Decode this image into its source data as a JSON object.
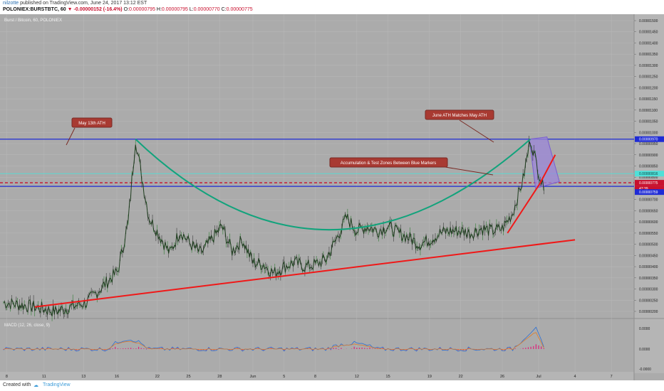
{
  "header": {
    "author": "nilzotte",
    "published": "published on TradingView.com, June 24, 2017 13:12 EST",
    "symbol": "POLONIEX:BURSTBTC, 60",
    "change": "-0.00000152 (-16.4%)",
    "ohlc": {
      "O": "0.00000795",
      "H": "0.00000795",
      "L": "0.00000770",
      "C": "0.00000775"
    },
    "last": "0.00000775"
  },
  "pane_title": "Burst / Bitcoin, 60, POLONIEX",
  "macd_title": "MACD (12, 26, close, 9)",
  "footer": {
    "created_with": "Created with",
    "brand": "TradingView"
  },
  "colors": {
    "background": "#ababab",
    "blue_line": "#1f2bd6",
    "cyan_line": "#4fe0d8",
    "red_trend": "#f01818",
    "cup_curve": "#12a37c",
    "annotation_box": "#a83a32",
    "price_box": "#9b86d8"
  },
  "annotations": [
    {
      "id": "may",
      "text": "May 13th ATH"
    },
    {
      "id": "june",
      "text": "June ATH Matches May ATH"
    },
    {
      "id": "accum",
      "text": "Accumulation & Test Zones Between Blue Markers"
    }
  ],
  "chart_data": {
    "type": "line",
    "title": "Burst / Bitcoin, 60, POLONIEX",
    "ylim": [
      1.8e-06,
      1.51e-05
    ],
    "y_ticks": [
      "0.00001500",
      "0.00001450",
      "0.00001400",
      "0.00001350",
      "0.00001300",
      "0.00001250",
      "0.00001200",
      "0.00001150",
      "0.00001100",
      "0.00001050",
      "0.00001000",
      "0.00000950",
      "0.00000900",
      "0.00000850",
      "0.00000800",
      "0.00000750",
      "0.00000700",
      "0.00000650",
      "0.00000600",
      "0.00000550",
      "0.00000500",
      "0.00000450",
      "0.00000400",
      "0.00000350",
      "0.00000300",
      "0.00000250",
      "0.00000200"
    ],
    "x_ticks": [
      "8",
      "11",
      "13",
      "16",
      "22",
      "25",
      "28",
      "Jun",
      "5",
      "8",
      "12",
      "15",
      "19",
      "22",
      "26",
      "Jul",
      "4",
      "7"
    ],
    "price_labels": [
      {
        "value": "0.00000970",
        "style": "blue"
      },
      {
        "value": "0.00000816",
        "style": "cyan"
      },
      {
        "value": "0.00000775",
        "style": "red"
      },
      {
        "value": "47:39",
        "style": "red"
      },
      {
        "value": "0.00000759",
        "style": "blue"
      }
    ],
    "horizontal_levels": [
      {
        "name": "blue-upper",
        "value": 9.7e-06
      },
      {
        "name": "cyan",
        "value": 8.16e-06
      },
      {
        "name": "red-dashed",
        "value": 7.75e-06
      },
      {
        "name": "blue-lower",
        "value": 7.59e-06
      }
    ],
    "price_series": [
      [
        0,
        2.4e-06
      ],
      [
        3,
        2.2e-06
      ],
      [
        5,
        2e-06
      ],
      [
        8,
        2.4e-06
      ],
      [
        11,
        3.8e-06
      ],
      [
        12,
        6e-06
      ],
      [
        12.7,
        9.7e-06
      ],
      [
        13.3,
        8e-06
      ],
      [
        14,
        6.2e-06
      ],
      [
        15,
        5.4e-06
      ],
      [
        16,
        4.6e-06
      ],
      [
        17,
        5.6e-06
      ],
      [
        18,
        5e-06
      ],
      [
        19,
        4.6e-06
      ],
      [
        20,
        5.2e-06
      ],
      [
        21,
        5.8e-06
      ],
      [
        22,
        4.7e-06
      ],
      [
        23,
        5.2e-06
      ],
      [
        24,
        4.2e-06
      ],
      [
        25,
        4.1e-06
      ],
      [
        26,
        3.7e-06
      ],
      [
        27,
        4e-06
      ],
      [
        28,
        4.2e-06
      ],
      [
        29,
        4e-06
      ],
      [
        30,
        4.1e-06
      ],
      [
        31,
        4.3e-06
      ],
      [
        32,
        5.2e-06
      ],
      [
        33,
        6.2e-06
      ],
      [
        34,
        5.6e-06
      ],
      [
        35,
        5.8e-06
      ],
      [
        36,
        5.6e-06
      ],
      [
        37,
        5.8e-06
      ],
      [
        38,
        5.5e-06
      ],
      [
        39,
        5.3e-06
      ],
      [
        40,
        5e-06
      ],
      [
        41,
        5.2e-06
      ],
      [
        42,
        5.5e-06
      ],
      [
        43,
        5.6e-06
      ],
      [
        44,
        5.6e-06
      ],
      [
        45,
        5.5e-06
      ],
      [
        46,
        5.7e-06
      ],
      [
        47,
        5.6e-06
      ],
      [
        48,
        5.7e-06
      ],
      [
        49,
        6.4e-06
      ],
      [
        50,
        7.9e-06
      ],
      [
        50.7,
        9.7e-06
      ],
      [
        51.3,
        8.6e-06
      ],
      [
        52,
        7.4e-06
      ]
    ],
    "macd": {
      "ylim": [
        -1.2e-06,
        1.2e-06
      ],
      "y_ticks": [
        "0.0000",
        "0.0000",
        "-0.0000"
      ]
    }
  }
}
